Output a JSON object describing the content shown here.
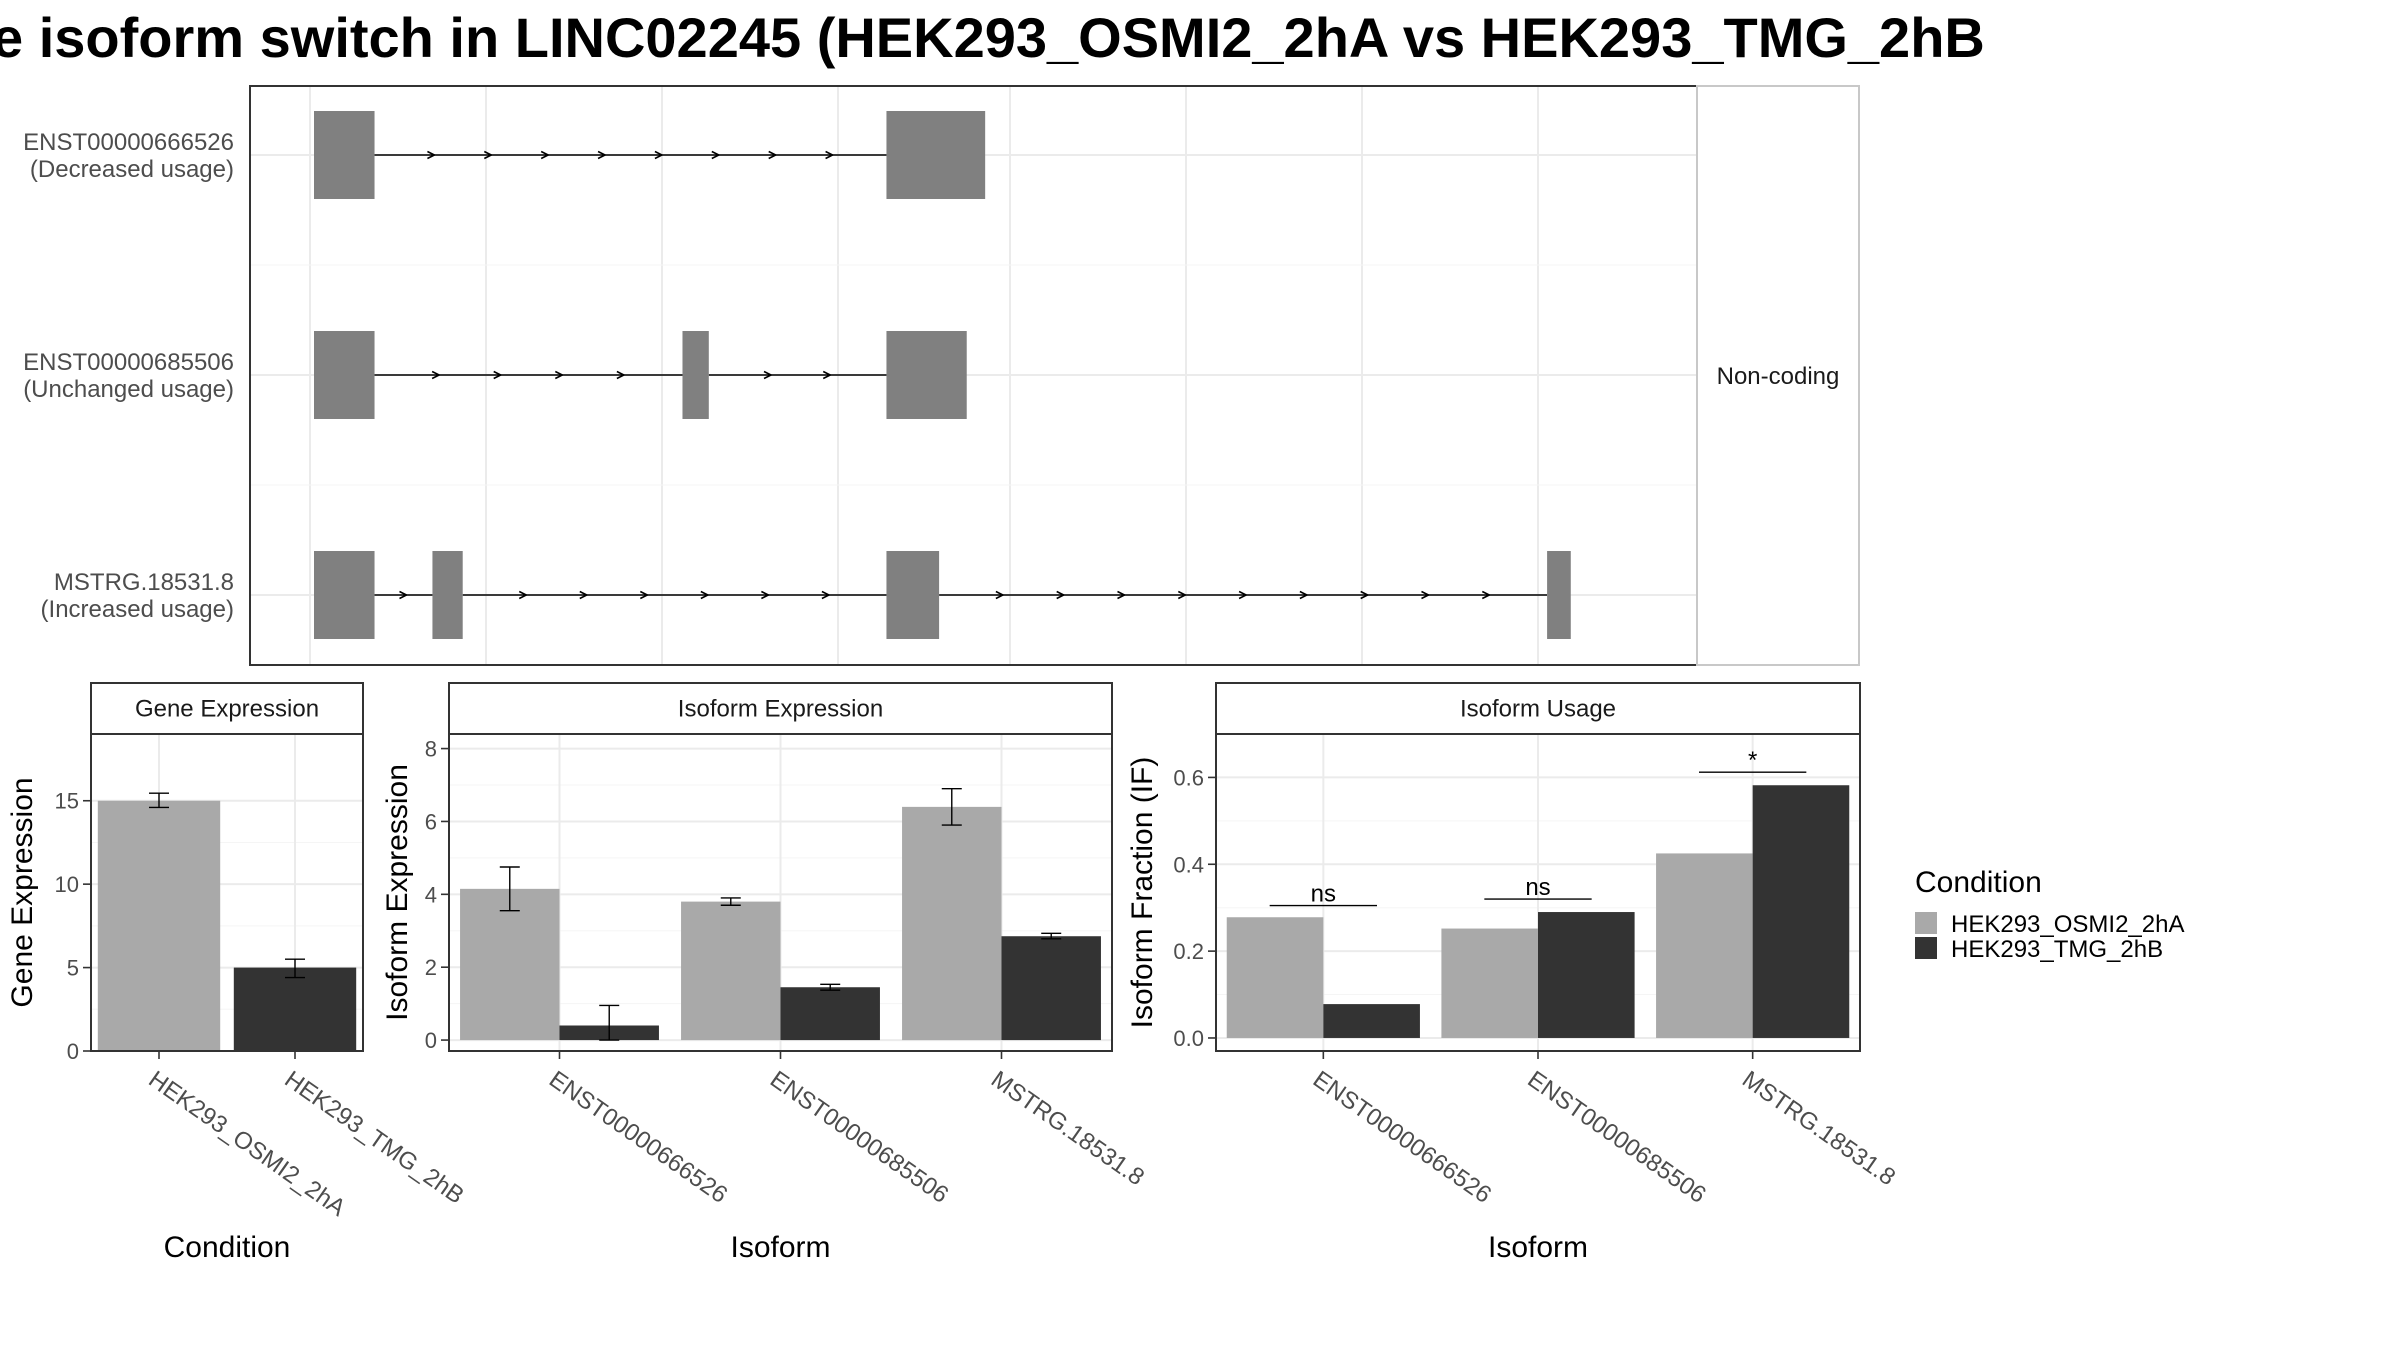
{
  "title": "e isoform switch in LINC02245 (HEK293_OSMI2_2hA vs HEK293_TMG_2hB",
  "colors": {
    "cond1": "#a9a9a9",
    "cond2": "#333333",
    "exon": "#808080",
    "grid": "#ebebeb",
    "frame": "#333333"
  },
  "chart_data": [
    {
      "type": "gene-structure",
      "strip_label": "Non-coding",
      "transcripts": [
        {
          "id": "ENST00000666526",
          "status": "(Decreased usage)",
          "exon_fractions": [
            [
              0.0,
              0.046
            ],
            [
              0.435,
              0.51
            ]
          ]
        },
        {
          "id": "ENST00000685506",
          "status": "(Unchanged usage)",
          "exon_fractions": [
            [
              0.0,
              0.046
            ],
            [
              0.28,
              0.3
            ],
            [
              0.435,
              0.496
            ]
          ]
        },
        {
          "id": "MSTRG.18531.8",
          "status": "(Increased usage)",
          "exon_fractions": [
            [
              0.0,
              0.046
            ],
            [
              0.09,
              0.113
            ],
            [
              0.435,
              0.475
            ],
            [
              0.937,
              0.955
            ]
          ]
        }
      ]
    },
    {
      "type": "bar",
      "title": "Gene Expression",
      "xlabel": "Condition",
      "ylabel": "Gene Expression",
      "ylim": [
        0,
        19
      ],
      "yticks": [
        0,
        5,
        10,
        15
      ],
      "categories": [
        "HEK293_OSMI2_2hA",
        "HEK293_TMG_2hB"
      ],
      "values": [
        15.0,
        5.0
      ],
      "errors": [
        [
          14.6,
          15.45
        ],
        [
          4.4,
          5.5
        ]
      ]
    },
    {
      "type": "bar",
      "title": "Isoform Expression",
      "xlabel": "Isoform",
      "ylabel": "Isoform Expression",
      "ylim": [
        -0.3,
        8.4
      ],
      "yticks": [
        0,
        2,
        4,
        6,
        8
      ],
      "categories": [
        "ENST00000666526",
        "ENST00000685506",
        "MSTRG.18531.8"
      ],
      "series": [
        {
          "name": "HEK293_OSMI2_2hA",
          "values": [
            4.15,
            3.8,
            6.4
          ],
          "errors": [
            [
              3.55,
              4.75
            ],
            [
              3.7,
              3.9
            ],
            [
              5.9,
              6.9
            ]
          ]
        },
        {
          "name": "HEK293_TMG_2hB",
          "values": [
            0.4,
            1.45,
            2.85
          ],
          "errors": [
            [
              0.0,
              0.95
            ],
            [
              1.37,
              1.53
            ],
            [
              2.78,
              2.93
            ]
          ]
        }
      ]
    },
    {
      "type": "bar",
      "title": "Isoform Usage",
      "xlabel": "Isoform",
      "ylabel": "Isoform Fraction (IF)",
      "ylim": [
        -0.03,
        0.7
      ],
      "yticks": [
        "0.0",
        "0.2",
        "0.4",
        "0.6"
      ],
      "categories": [
        "ENST00000666526",
        "ENST00000685506",
        "MSTRG.18531.8"
      ],
      "series": [
        {
          "name": "HEK293_OSMI2_2hA",
          "values": [
            0.278,
            0.252,
            0.425
          ]
        },
        {
          "name": "HEK293_TMG_2hB",
          "values": [
            0.078,
            0.29,
            0.582
          ]
        }
      ],
      "significance": [
        {
          "label": "ns",
          "y": 0.305
        },
        {
          "label": "ns",
          "y": 0.32
        },
        {
          "label": "*",
          "y": 0.612
        }
      ]
    }
  ],
  "legend": {
    "title": "Condition",
    "items": [
      "HEK293_OSMI2_2hA",
      "HEK293_TMG_2hB"
    ]
  }
}
